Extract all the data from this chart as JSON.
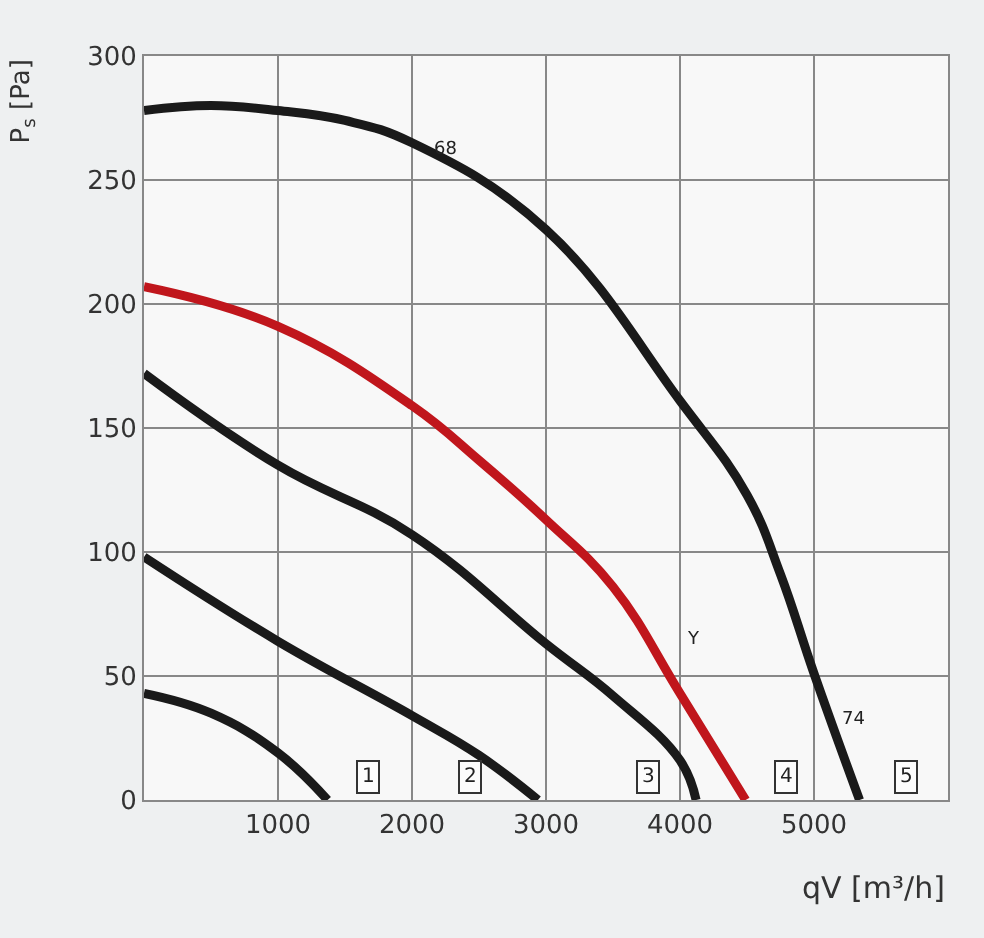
{
  "chart_data": {
    "type": "line",
    "xlabel": "qV [m³/h]",
    "ylabel": "P$_{s}$ [Pa]",
    "xlim": [
      0,
      6000
    ],
    "ylim": [
      0,
      300
    ],
    "xticks": [
      1000,
      2000,
      3000,
      4000,
      5000
    ],
    "yticks": [
      0,
      50,
      100,
      150,
      200,
      250,
      300
    ],
    "grid": true,
    "legend": false,
    "marker": "none",
    "line_style": "solid",
    "series": [
      {
        "name": "1",
        "color": "#1a1a1a",
        "x": [
          0,
          500,
          1000,
          1370
        ],
        "values": [
          43,
          35,
          19,
          0
        ]
      },
      {
        "name": "2",
        "color": "#1a1a1a",
        "x": [
          0,
          1000,
          2000,
          2500,
          2940
        ],
        "values": [
          98,
          64,
          34,
          18,
          0
        ]
      },
      {
        "name": "3",
        "color": "#1a1a1a",
        "x": [
          0,
          1000,
          2000,
          3000,
          3500,
          4000,
          4120
        ],
        "values": [
          172,
          135,
          107,
          63,
          42,
          16,
          0
        ]
      },
      {
        "name": "4",
        "color": "#c0161c",
        "x": [
          0,
          1000,
          2000,
          2500,
          3000,
          3500,
          4000,
          4490
        ],
        "values": [
          207,
          191,
          159,
          137,
          113,
          86,
          43,
          0
        ]
      },
      {
        "name": "5",
        "color": "#1a1a1a",
        "x": [
          0,
          500,
          1000,
          1500,
          2000,
          3000,
          4000,
          4500,
          4750,
          5000,
          5340
        ],
        "values": [
          278,
          280,
          278,
          274,
          265,
          230,
          161,
          123,
          91,
          51,
          0
        ]
      }
    ],
    "annotations": [
      "68",
      "Y",
      "74"
    ]
  }
}
